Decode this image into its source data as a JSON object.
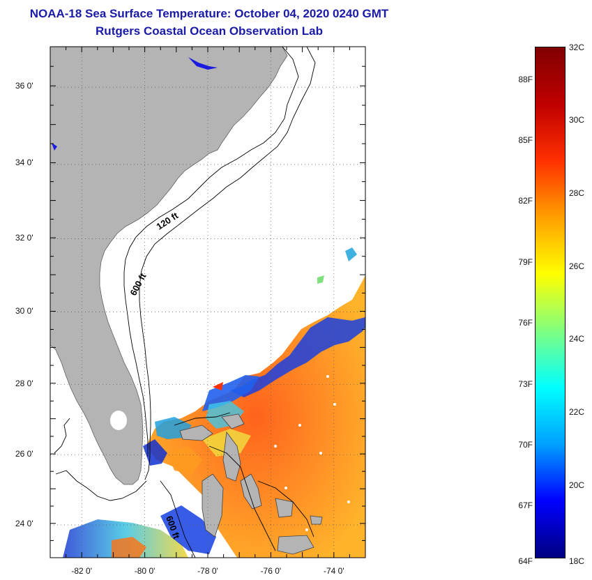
{
  "header": {
    "title": "NOAA-18 Sea Surface Temperature:  October 04, 2020 0240 GMT",
    "subtitle": "Rutgers Coastal Ocean Observation Lab"
  },
  "map": {
    "lon_range": [
      -83,
      -73
    ],
    "lat_range": [
      23,
      37
    ],
    "lat_ticks": [
      {
        "lat": 36,
        "label": "36 0'"
      },
      {
        "lat": 34,
        "label": "34 0'"
      },
      {
        "lat": 32,
        "label": "32 0'"
      },
      {
        "lat": 30,
        "label": "30 0'"
      },
      {
        "lat": 28,
        "label": "28 0'"
      },
      {
        "lat": 26,
        "label": "26 0'"
      },
      {
        "lat": 24,
        "label": "24 0'"
      }
    ],
    "lon_ticks": [
      {
        "lon": -82,
        "label": "-82 0'"
      },
      {
        "lon": -80,
        "label": "-80 0'"
      },
      {
        "lon": -78,
        "label": "-78 0'"
      },
      {
        "lon": -76,
        "label": "-76 0'"
      },
      {
        "lon": -74,
        "label": "-74 0'"
      }
    ],
    "contour_labels": {
      "c120": "120 ft",
      "c600": "600 ft",
      "c600b": "600 ft"
    },
    "colors": {
      "land": "#b4b4b4",
      "ocean_nodata": "#ffffff",
      "contour": "#000000"
    }
  },
  "colorbar": {
    "range_c": [
      18,
      32
    ],
    "celsius_labels": [
      {
        "v": 32,
        "label": "32C"
      },
      {
        "v": 30,
        "label": "30C"
      },
      {
        "v": 28,
        "label": "28C"
      },
      {
        "v": 26,
        "label": "26C"
      },
      {
        "v": 24,
        "label": "24C"
      },
      {
        "v": 22,
        "label": "22C"
      },
      {
        "v": 20,
        "label": "20C"
      },
      {
        "v": 18,
        "label": "18C"
      }
    ],
    "fahrenheit_labels": [
      {
        "v": 88,
        "label": "88F"
      },
      {
        "v": 85,
        "label": "85F"
      },
      {
        "v": 82,
        "label": "82F"
      },
      {
        "v": 79,
        "label": "79F"
      },
      {
        "v": 76,
        "label": "76F"
      },
      {
        "v": 73,
        "label": "73F"
      },
      {
        "v": 70,
        "label": "70F"
      },
      {
        "v": 67,
        "label": "67F"
      },
      {
        "v": 64,
        "label": "64F"
      }
    ],
    "stops": [
      "#000080",
      "#0000ff",
      "#00a0ff",
      "#00ffff",
      "#80ff80",
      "#ffff00",
      "#ffa000",
      "#ff3000",
      "#c00000",
      "#800000"
    ]
  }
}
